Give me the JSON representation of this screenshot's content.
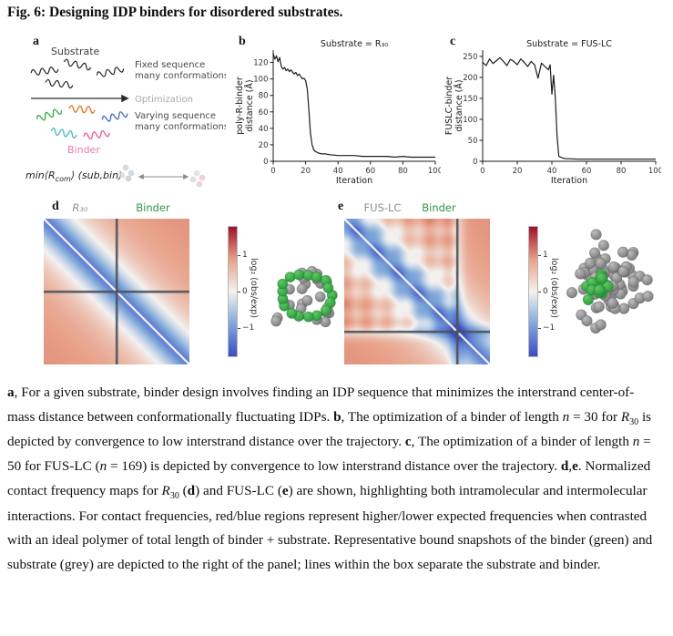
{
  "title": "Fig. 6: Designing IDP binders for disordered substrates.",
  "panels": {
    "a": {
      "label": "a",
      "substrate": "Substrate",
      "binder": "Binder",
      "fixed_line1": "Fixed sequence",
      "fixed_line2": "many conformations",
      "optimization": "Optimization",
      "varying_line1": "Varying sequence",
      "varying_line2": "many conformations",
      "formula_pre": "min⟨R",
      "formula_sub": "com",
      "formula_post": "⟩ (sub,bin)"
    },
    "b": {
      "label": "b"
    },
    "c": {
      "label": "c"
    },
    "d": {
      "label": "d",
      "map_label_left": "R₃₀",
      "map_label_right": "Binder"
    },
    "e": {
      "label": "e",
      "map_label_left": "FUS-LC",
      "map_label_right": "Binder"
    }
  },
  "colorbar": {
    "label": "log₂ (obs/exp)",
    "ticks": [
      "1",
      "0",
      "−1"
    ],
    "tick_values": [
      1,
      0,
      -1
    ],
    "vmin": -1.8,
    "vmax": 1.8,
    "gradient": [
      "#9e1228",
      "#e8a088",
      "#f3f2f0",
      "#7fa7db",
      "#3b4cc0"
    ]
  },
  "chart_data": [
    {
      "id": "b",
      "type": "line",
      "title": "Substrate = R₃₀",
      "xlabel": "Iteration",
      "ylabel_lines": [
        "poly-R-binder",
        "distance (Å)"
      ],
      "xlim": [
        0,
        100
      ],
      "ylim": [
        0,
        135
      ],
      "xticks": [
        0,
        20,
        40,
        60,
        80,
        100
      ],
      "yticks": [
        0,
        20,
        40,
        60,
        80,
        100,
        120
      ],
      "line_color": "#1c1c1c",
      "x": [
        0,
        1,
        2,
        3,
        4,
        5,
        6,
        7,
        8,
        9,
        10,
        11,
        12,
        13,
        14,
        15,
        16,
        17,
        18,
        19,
        20,
        21,
        22,
        23,
        24,
        25,
        26,
        28,
        30,
        32,
        35,
        40,
        45,
        50,
        55,
        60,
        65,
        70,
        75,
        80,
        85,
        90,
        95,
        100
      ],
      "y": [
        131,
        124,
        128,
        121,
        126,
        115,
        112,
        114,
        110,
        112,
        109,
        111,
        108,
        106,
        108,
        104,
        106,
        103,
        100,
        101,
        98,
        88,
        62,
        34,
        20,
        14,
        12,
        10,
        9,
        9,
        8,
        7,
        7,
        7,
        6,
        6,
        6,
        6,
        5,
        6,
        5,
        5,
        5,
        5
      ]
    },
    {
      "id": "c",
      "type": "line",
      "title": "Substrate = FUS-LC",
      "xlabel": "Iteration",
      "ylabel_lines": [
        "FUSLC-binder",
        "distance (Å)"
      ],
      "xlim": [
        0,
        100
      ],
      "ylim": [
        0,
        265
      ],
      "xticks": [
        0,
        20,
        40,
        60,
        80,
        100
      ],
      "yticks": [
        0,
        50,
        100,
        150,
        200,
        250
      ],
      "line_color": "#1c1c1c",
      "x": [
        0,
        2,
        4,
        6,
        8,
        10,
        12,
        14,
        16,
        18,
        20,
        22,
        24,
        26,
        28,
        30,
        32,
        34,
        36,
        38,
        39,
        40,
        41,
        42,
        43,
        44,
        46,
        48,
        50,
        55,
        60,
        65,
        70,
        75,
        80,
        85,
        90,
        95,
        100
      ],
      "y": [
        236,
        228,
        244,
        233,
        240,
        247,
        238,
        228,
        243,
        238,
        230,
        244,
        236,
        226,
        238,
        230,
        198,
        234,
        226,
        218,
        230,
        160,
        205,
        150,
        60,
        12,
        8,
        6,
        6,
        5,
        5,
        5,
        5,
        5,
        5,
        5,
        5,
        5,
        5
      ]
    }
  ],
  "heatmaps": [
    {
      "id": "d",
      "boundary": 0.5,
      "stripes": false,
      "cross": false
    },
    {
      "id": "e",
      "boundary": 0.772,
      "stripes": true,
      "cross": true
    }
  ],
  "snapshots": [
    {
      "id": "d",
      "style": "ring",
      "grey_count": 24,
      "green_count": 17
    },
    {
      "id": "e",
      "style": "blob",
      "grey_count": 78,
      "green_count": 15
    }
  ],
  "colors": {
    "binder_green": "#2e9443",
    "substrate_grey": "#8f8f8f",
    "binder_pink": "#e87bad",
    "optimization_grey": "#a9a9a9",
    "divider": "#4c5257",
    "binder_squiggles": [
      "#3fae49",
      "#e0762f",
      "#4a6fbf",
      "#49b8c4",
      "#e85d9a"
    ]
  },
  "caption": [
    {
      "t": "a",
      "b": true
    },
    {
      "t": ", For a given substrate, binder design involves finding an IDP sequence that minimizes the interstrand center-of-mass distance between conformationally fluctuating IDPs. "
    },
    {
      "t": "b",
      "b": true
    },
    {
      "t": ", The optimization of a binder of length "
    },
    {
      "t": "n",
      "i": true
    },
    {
      "t": " = 30 for "
    },
    {
      "t": "R",
      "i": true
    },
    {
      "t": "30",
      "s": true
    },
    {
      "t": " is depicted by convergence to low interstrand distance over the trajectory. "
    },
    {
      "t": "c",
      "b": true
    },
    {
      "t": ", The optimization of a binder of length "
    },
    {
      "t": "n",
      "i": true
    },
    {
      "t": " = 50 for FUS-LC ("
    },
    {
      "t": "n",
      "i": true
    },
    {
      "t": " = 169) is depicted by convergence to low interstrand distance over the trajectory. "
    },
    {
      "t": "d",
      "b": true
    },
    {
      "t": ","
    },
    {
      "t": "e",
      "b": true
    },
    {
      "t": ". Normalized contact frequency maps for "
    },
    {
      "t": "R",
      "i": true
    },
    {
      "t": "30",
      "s": true
    },
    {
      "t": " ("
    },
    {
      "t": "d",
      "b": true
    },
    {
      "t": ") and FUS-LC ("
    },
    {
      "t": "e",
      "b": true
    },
    {
      "t": ") are shown, highlighting both intramolecular and intermolecular interactions. For contact frequencies, red/blue regions represent higher/lower expected frequencies when contrasted with an ideal polymer of total length of binder + substrate. Representative bound snapshots of the binder (green) and substrate (grey) are depicted to the right of the panel; lines within the box separate the substrate and binder."
    }
  ]
}
